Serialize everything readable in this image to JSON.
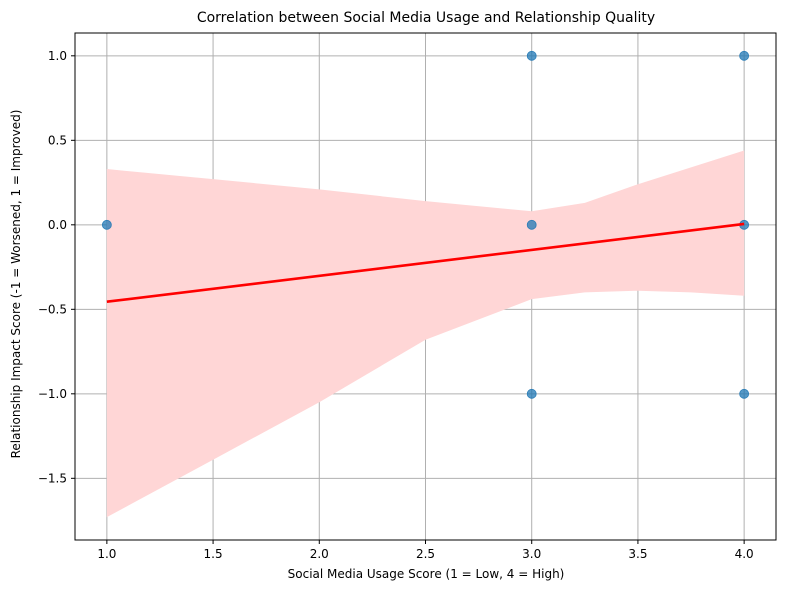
{
  "chart_data": {
    "type": "scatter",
    "title": "Correlation between Social Media Usage and Relationship Quality",
    "xlabel": "Social Media Usage Score (1 = Low, 4 = High)",
    "ylabel": "Relationship Impact Score (-1 = Worsened, 1 = Improved)",
    "xlim": [
      0.85,
      4.15
    ],
    "ylim": [
      -1.865,
      1.135
    ],
    "grid": true,
    "x_ticks": [
      1.0,
      1.5,
      2.0,
      2.5,
      3.0,
      3.5,
      4.0
    ],
    "x_tick_labels": [
      "1.0",
      "1.5",
      "2.0",
      "2.5",
      "3.0",
      "3.5",
      "4.0"
    ],
    "y_ticks": [
      -1.5,
      -1.0,
      -0.5,
      0.0,
      0.5,
      1.0
    ],
    "y_tick_labels": [
      "−1.5",
      "−1.0",
      "−0.5",
      "0.0",
      "0.5",
      "1.0"
    ],
    "points": [
      {
        "x": 1.0,
        "y": 0.0
      },
      {
        "x": 3.0,
        "y": 1.0
      },
      {
        "x": 3.0,
        "y": 0.0
      },
      {
        "x": 3.0,
        "y": -1.0
      },
      {
        "x": 4.0,
        "y": 1.0
      },
      {
        "x": 4.0,
        "y": 0.0
      },
      {
        "x": 4.0,
        "y": -1.0
      }
    ],
    "regression_line": {
      "x": [
        1.0,
        4.0
      ],
      "y": [
        -0.455,
        0.005
      ]
    },
    "confidence_band": {
      "x": [
        1.0,
        1.5,
        2.0,
        2.5,
        3.0,
        3.25,
        3.5,
        3.75,
        4.0
      ],
      "lower": [
        -1.73,
        -1.39,
        -1.05,
        -0.68,
        -0.44,
        -0.4,
        -0.39,
        -0.4,
        -0.42
      ],
      "upper": [
        0.33,
        0.27,
        0.21,
        0.14,
        0.08,
        0.13,
        0.24,
        0.34,
        0.44
      ]
    },
    "colors": {
      "points": "#1f77b4",
      "line": "#ff0000",
      "band": "#ffd6d6",
      "grid": "#b0b0b0"
    }
  }
}
